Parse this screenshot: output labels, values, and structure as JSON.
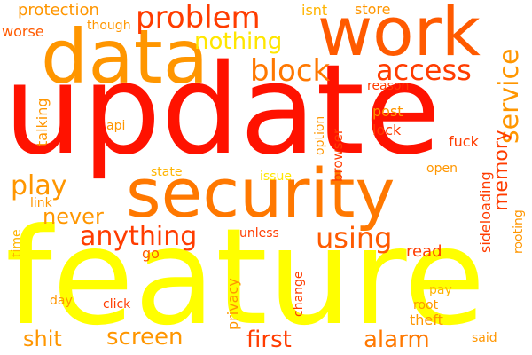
{
  "colors": {
    "red": "#ff1200",
    "red_orange": "#ff3c00",
    "orange_red": "#ff5a00",
    "orange": "#ff7800",
    "amber": "#ff9600",
    "gold": "#ffb400",
    "yellow": "#ffe600",
    "bright_yellow": "#ffff00"
  },
  "words": [
    {
      "id": "update",
      "text": "update"
    },
    {
      "id": "feature",
      "text": "feature"
    },
    {
      "id": "security",
      "text": "security"
    },
    {
      "id": "work",
      "text": "work"
    },
    {
      "id": "data",
      "text": "data"
    },
    {
      "id": "problem",
      "text": "problem"
    },
    {
      "id": "block",
      "text": "block"
    },
    {
      "id": "access",
      "text": "access"
    },
    {
      "id": "service",
      "text": "service"
    },
    {
      "id": "nothing",
      "text": "nothing"
    },
    {
      "id": "anything",
      "text": "anything"
    },
    {
      "id": "using",
      "text": "using"
    },
    {
      "id": "play",
      "text": "play"
    },
    {
      "id": "never",
      "text": "never"
    },
    {
      "id": "memory",
      "text": "memory"
    },
    {
      "id": "screen",
      "text": "screen"
    },
    {
      "id": "first",
      "text": "first"
    },
    {
      "id": "alarm",
      "text": "alarm"
    },
    {
      "id": "shit",
      "text": "shit"
    },
    {
      "id": "protection",
      "text": "protection"
    },
    {
      "id": "store",
      "text": "store"
    },
    {
      "id": "isnt",
      "text": "isnt"
    },
    {
      "id": "though",
      "text": "though"
    },
    {
      "id": "worse",
      "text": "worse"
    },
    {
      "id": "talking",
      "text": "talking"
    },
    {
      "id": "reason",
      "text": "reason"
    },
    {
      "id": "post",
      "text": "post"
    },
    {
      "id": "lock",
      "text": "lock"
    },
    {
      "id": "api",
      "text": "api"
    },
    {
      "id": "option",
      "text": "option"
    },
    {
      "id": "browser",
      "text": "browser"
    },
    {
      "id": "fuck",
      "text": "fuck"
    },
    {
      "id": "state",
      "text": "state"
    },
    {
      "id": "issue",
      "text": "issue"
    },
    {
      "id": "open",
      "text": "open"
    },
    {
      "id": "link",
      "text": "link"
    },
    {
      "id": "time",
      "text": "time"
    },
    {
      "id": "sideloading",
      "text": "sideloading"
    },
    {
      "id": "rooting",
      "text": "rooting"
    },
    {
      "id": "unless",
      "text": "unless"
    },
    {
      "id": "read",
      "text": "read"
    },
    {
      "id": "go",
      "text": "go"
    },
    {
      "id": "change",
      "text": "change"
    },
    {
      "id": "privacy",
      "text": "privacy"
    },
    {
      "id": "day",
      "text": "day"
    },
    {
      "id": "click",
      "text": "click"
    },
    {
      "id": "pay",
      "text": "pay"
    },
    {
      "id": "root",
      "text": "root"
    },
    {
      "id": "theft",
      "text": "theft"
    },
    {
      "id": "said",
      "text": "said"
    }
  ]
}
